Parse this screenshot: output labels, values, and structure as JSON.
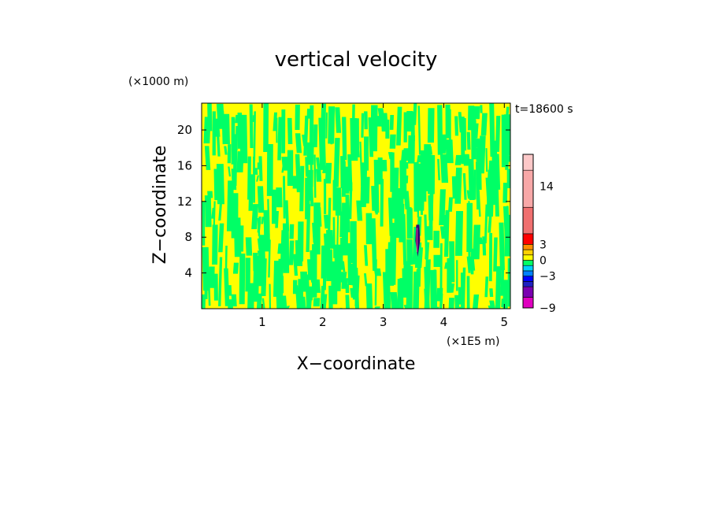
{
  "chart_data": {
    "type": "heatmap",
    "title": "vertical velocity",
    "xlabel": "X−coordinate",
    "ylabel": "Z−coordinate",
    "x_unit": "(×1E5 m)",
    "y_unit": "(×1000 m)",
    "time_label": "t=18600 s",
    "xlim": [
      0,
      5.1
    ],
    "ylim": [
      0,
      23
    ],
    "x_ticks": [
      "1",
      "2",
      "3",
      "4",
      "5"
    ],
    "y_ticks": [
      "4",
      "8",
      "12",
      "16",
      "20"
    ],
    "dominant_fields": [
      {
        "value_range": [
          0,
          1
        ],
        "color": "#ffff00"
      },
      {
        "value_range": [
          -1,
          0
        ],
        "color": "#00ff66"
      }
    ],
    "feature": {
      "x": 3.57,
      "z_range": [
        5.8,
        9.4
      ],
      "max_value": -9
    },
    "colorbar": {
      "labels": [
        "14",
        "3",
        "0",
        "−3",
        "−9"
      ],
      "levels": [
        {
          "lo": -9,
          "hi": -7,
          "color": "#e000c0"
        },
        {
          "lo": -7,
          "hi": -5,
          "color": "#7a00b0"
        },
        {
          "lo": -5,
          "hi": -4,
          "color": "#2020c0"
        },
        {
          "lo": -4,
          "hi": -3,
          "color": "#0000ff"
        },
        {
          "lo": -3,
          "hi": -2,
          "color": "#0080ff"
        },
        {
          "lo": -2,
          "hi": -1,
          "color": "#00d0ff"
        },
        {
          "lo": -1,
          "hi": 0,
          "color": "#00ff66"
        },
        {
          "lo": 0,
          "hi": 1,
          "color": "#ffff00"
        },
        {
          "lo": 1,
          "hi": 2,
          "color": "#ffd000"
        },
        {
          "lo": 2,
          "hi": 3,
          "color": "#ff9000"
        },
        {
          "lo": 3,
          "hi": 5,
          "color": "#ff0000"
        },
        {
          "lo": 5,
          "hi": 10,
          "color": "#f07070"
        },
        {
          "lo": 10,
          "hi": 17,
          "color": "#f8a8a8"
        },
        {
          "lo": 17,
          "hi": 20,
          "color": "#fcc8c8"
        }
      ]
    }
  }
}
